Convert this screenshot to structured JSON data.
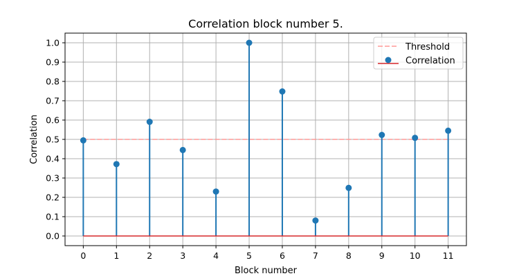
{
  "chart_data": {
    "type": "stem",
    "title": "Correlation block number 5.",
    "xlabel": "Block number",
    "ylabel": "Correlation",
    "x": [
      0,
      1,
      2,
      3,
      4,
      5,
      6,
      7,
      8,
      9,
      10,
      11
    ],
    "xticks": [
      "0",
      "1",
      "2",
      "3",
      "4",
      "5",
      "6",
      "7",
      "8",
      "9",
      "10",
      "11"
    ],
    "xlim": [
      -0.55,
      11.55
    ],
    "ylim": [
      -0.05,
      1.05
    ],
    "yticks": [
      "0.0",
      "0.1",
      "0.2",
      "0.3",
      "0.4",
      "0.5",
      "0.6",
      "0.7",
      "0.8",
      "0.9",
      "1.0"
    ],
    "series": [
      {
        "name": "Correlation",
        "values": [
          0.495,
          0.372,
          0.591,
          0.445,
          0.23,
          1.0,
          0.748,
          0.08,
          0.249,
          0.523,
          0.508,
          0.545
        ],
        "color": "#1f77b4",
        "baseline_color": "#d62728"
      }
    ],
    "threshold": {
      "name": "Threshold",
      "value": 0.5,
      "color": "#ff9896"
    },
    "grid": true,
    "legend_position": "top-right"
  }
}
